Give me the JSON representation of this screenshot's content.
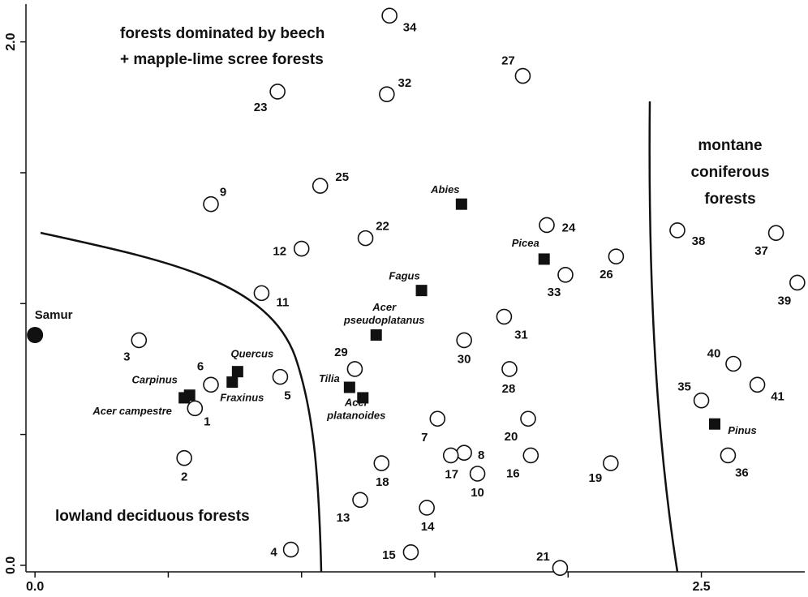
{
  "chart_data": {
    "type": "scatter",
    "xlim": [
      -0.04,
      2.9
    ],
    "ylim": [
      -0.025,
      2.16
    ],
    "xticks": [
      {
        "value": 0,
        "label": "0.0"
      },
      {
        "value": 2.5,
        "label": "2.5"
      }
    ],
    "xminorticks": [
      0.5,
      1,
      1.5,
      2
    ],
    "yticks": [
      {
        "value": 0,
        "label": "0.0"
      },
      {
        "value": 2,
        "label": "2.0"
      }
    ],
    "yminorticks": [
      0.5,
      1,
      1.5
    ],
    "annotations": [
      {
        "lines": [
          "forests dominated by beech",
          "+ mapple-lime scree forests"
        ]
      },
      {
        "lines": [
          "montane",
          "coniferous",
          "forests"
        ]
      },
      {
        "lines": [
          "lowland deciduous forests"
        ]
      }
    ],
    "reference": {
      "label": "Samur",
      "x": 0.0,
      "y": 0.88
    },
    "sites": [
      {
        "label": "1",
        "x": 0.6,
        "y": 0.6
      },
      {
        "label": "2",
        "x": 0.56,
        "y": 0.41
      },
      {
        "label": "3",
        "x": 0.39,
        "y": 0.86
      },
      {
        "label": "4",
        "x": 0.96,
        "y": 0.06
      },
      {
        "label": "5",
        "x": 0.92,
        "y": 0.72
      },
      {
        "label": "6",
        "x": 0.66,
        "y": 0.69
      },
      {
        "label": "7",
        "x": 1.51,
        "y": 0.56
      },
      {
        "label": "8",
        "x": 1.61,
        "y": 0.43
      },
      {
        "label": "9",
        "x": 0.66,
        "y": 1.38
      },
      {
        "label": "10",
        "x": 1.66,
        "y": 0.35
      },
      {
        "label": "11",
        "x": 0.85,
        "y": 1.04
      },
      {
        "label": "12",
        "x": 1.0,
        "y": 1.21
      },
      {
        "label": "13",
        "x": 1.22,
        "y": 0.25
      },
      {
        "label": "14",
        "x": 1.47,
        "y": 0.22
      },
      {
        "label": "15",
        "x": 1.41,
        "y": 0.05
      },
      {
        "label": "16",
        "x": 1.86,
        "y": 0.42
      },
      {
        "label": "17",
        "x": 1.56,
        "y": 0.42
      },
      {
        "label": "18",
        "x": 1.3,
        "y": 0.39
      },
      {
        "label": "19",
        "x": 2.16,
        "y": 0.39
      },
      {
        "label": "20",
        "x": 1.85,
        "y": 0.56
      },
      {
        "label": "21",
        "x": 1.97,
        "y": -0.01
      },
      {
        "label": "22",
        "x": 1.24,
        "y": 1.25
      },
      {
        "label": "23",
        "x": 0.91,
        "y": 1.81
      },
      {
        "label": "24",
        "x": 1.92,
        "y": 1.3
      },
      {
        "label": "25",
        "x": 1.07,
        "y": 1.45
      },
      {
        "label": "26",
        "x": 2.18,
        "y": 1.18
      },
      {
        "label": "27",
        "x": 1.83,
        "y": 1.87
      },
      {
        "label": "28",
        "x": 1.78,
        "y": 0.75
      },
      {
        "label": "29",
        "x": 1.2,
        "y": 0.75
      },
      {
        "label": "30",
        "x": 1.61,
        "y": 0.86
      },
      {
        "label": "31",
        "x": 1.76,
        "y": 0.95
      },
      {
        "label": "32",
        "x": 1.32,
        "y": 1.8
      },
      {
        "label": "33",
        "x": 1.99,
        "y": 1.11
      },
      {
        "label": "34",
        "x": 1.33,
        "y": 2.1
      },
      {
        "label": "35",
        "x": 2.5,
        "y": 0.63
      },
      {
        "label": "36",
        "x": 2.6,
        "y": 0.42
      },
      {
        "label": "37",
        "x": 2.78,
        "y": 1.27
      },
      {
        "label": "38",
        "x": 2.41,
        "y": 1.28
      },
      {
        "label": "39",
        "x": 2.86,
        "y": 1.08
      },
      {
        "label": "40",
        "x": 2.62,
        "y": 0.77
      },
      {
        "label": "41",
        "x": 2.71,
        "y": 0.69
      }
    ],
    "species": [
      {
        "label": "Abies",
        "x": 1.6,
        "y": 1.38
      },
      {
        "label": "Picea",
        "x": 1.91,
        "y": 1.17
      },
      {
        "label": "Fagus",
        "x": 1.45,
        "y": 1.05
      },
      {
        "label": "Acer pseudoplatanus",
        "x": 1.28,
        "y": 0.88
      },
      {
        "label": "Tilia",
        "x": 1.18,
        "y": 0.68
      },
      {
        "label": "Acer platanoides",
        "x": 1.23,
        "y": 0.64
      },
      {
        "label": "Quercus",
        "x": 0.76,
        "y": 0.74
      },
      {
        "label": "Fraxinus",
        "x": 0.74,
        "y": 0.7
      },
      {
        "label": "Carpinus",
        "x": 0.58,
        "y": 0.65
      },
      {
        "label": "Acer campestre",
        "x": 0.56,
        "y": 0.64
      },
      {
        "label": "Pinus",
        "x": 2.55,
        "y": 0.54
      }
    ]
  }
}
